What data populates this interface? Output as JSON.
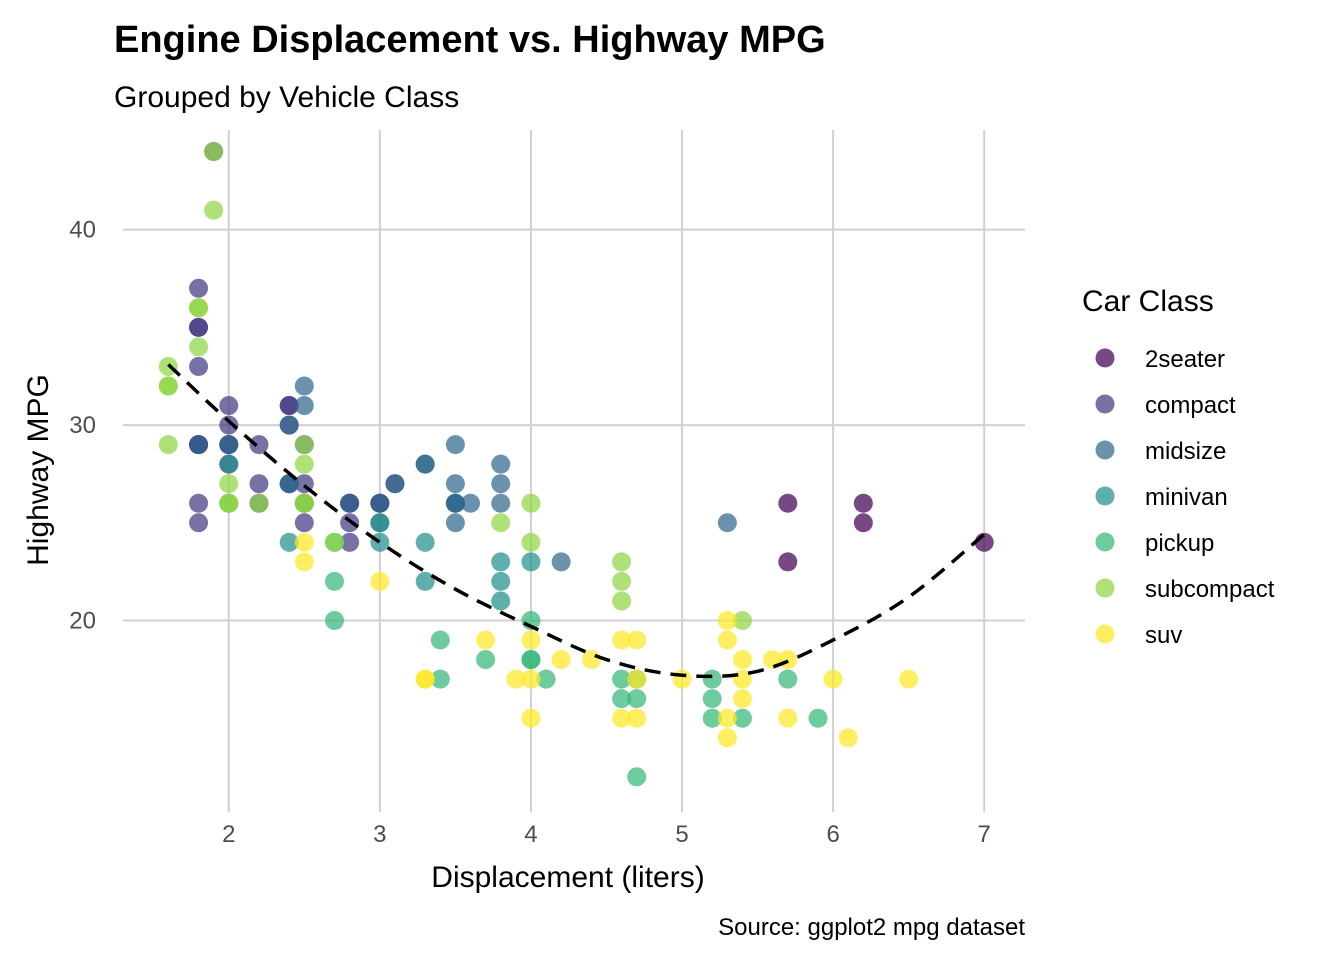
{
  "chart_data": {
    "type": "scatter",
    "title": "Engine Displacement vs. Highway MPG",
    "subtitle": "Grouped by Vehicle Class",
    "xlabel": "Displacement (liters)",
    "ylabel": "Highway MPG",
    "caption": "Source: ggplot2 mpg dataset",
    "xlim": [
      1.3,
      7.27
    ],
    "ylim": [
      10.2,
      45.1
    ],
    "x_ticks": [
      2,
      3,
      4,
      5,
      6,
      7
    ],
    "y_ticks": [
      20,
      30,
      40
    ],
    "grid": true,
    "legend": {
      "title": "Car Class",
      "position": "right"
    },
    "series": [
      {
        "name": "2seater",
        "color": "#440154",
        "points": [
          [
            5.7,
            26
          ],
          [
            5.7,
            23
          ],
          [
            6.2,
            26
          ],
          [
            6.2,
            25
          ],
          [
            7.0,
            24
          ]
        ]
      },
      {
        "name": "compact",
        "color": "#443A83",
        "points": [
          [
            1.8,
            29
          ],
          [
            1.8,
            29
          ],
          [
            2.0,
            31
          ],
          [
            2.0,
            30
          ],
          [
            2.8,
            26
          ],
          [
            2.8,
            26
          ],
          [
            3.1,
            27
          ],
          [
            1.8,
            26
          ],
          [
            1.8,
            25
          ],
          [
            2.0,
            28
          ],
          [
            2.0,
            29
          ],
          [
            2.8,
            25
          ],
          [
            3.0,
            26
          ],
          [
            1.9,
            44
          ],
          [
            2.0,
            29
          ],
          [
            2.5,
            29
          ],
          [
            2.5,
            26
          ],
          [
            2.2,
            29
          ],
          [
            2.2,
            27
          ],
          [
            2.4,
            31
          ],
          [
            2.4,
            31
          ],
          [
            3.0,
            26
          ],
          [
            1.8,
            33
          ],
          [
            1.8,
            35
          ],
          [
            1.8,
            37
          ],
          [
            1.8,
            35
          ],
          [
            1.8,
            29
          ],
          [
            2.5,
            27
          ],
          [
            2.5,
            25
          ],
          [
            2.8,
            24
          ],
          [
            2.4,
            27
          ],
          [
            2.4,
            30
          ],
          [
            2.2,
            26
          ]
        ]
      },
      {
        "name": "midsize",
        "color": "#31688E",
        "points": [
          [
            2.4,
            27
          ],
          [
            3.0,
            26
          ],
          [
            3.3,
            28
          ],
          [
            3.5,
            29
          ],
          [
            3.5,
            26
          ],
          [
            2.4,
            30
          ],
          [
            2.5,
            32
          ],
          [
            2.5,
            31
          ],
          [
            3.5,
            25
          ],
          [
            3.5,
            26
          ],
          [
            3.6,
            26
          ],
          [
            3.8,
            27
          ],
          [
            3.8,
            28
          ],
          [
            4.2,
            23
          ],
          [
            5.3,
            25
          ],
          [
            1.8,
            29
          ],
          [
            2.0,
            29
          ],
          [
            2.8,
            26
          ],
          [
            3.1,
            27
          ],
          [
            2.4,
            27
          ],
          [
            3.3,
            28
          ],
          [
            3.5,
            27
          ],
          [
            3.8,
            26
          ],
          [
            3.0,
            25
          ],
          [
            3.5,
            26
          ],
          [
            2.5,
            26
          ]
        ]
      },
      {
        "name": "minivan",
        "color": "#21908C",
        "points": [
          [
            2.4,
            24
          ],
          [
            3.0,
            24
          ],
          [
            3.3,
            22
          ],
          [
            3.3,
            24
          ],
          [
            3.8,
            23
          ],
          [
            3.8,
            22
          ],
          [
            4.0,
            23
          ],
          [
            3.8,
            21
          ],
          [
            3.0,
            25
          ],
          [
            2.0,
            26
          ],
          [
            2.0,
            28
          ]
        ]
      },
      {
        "name": "pickup",
        "color": "#35B779",
        "points": [
          [
            2.7,
            20
          ],
          [
            2.7,
            22
          ],
          [
            3.4,
            17
          ],
          [
            3.7,
            18
          ],
          [
            4.0,
            20
          ],
          [
            4.0,
            18
          ],
          [
            4.1,
            17
          ],
          [
            4.6,
            17
          ],
          [
            4.6,
            16
          ],
          [
            4.7,
            17
          ],
          [
            4.7,
            16
          ],
          [
            5.2,
            17
          ],
          [
            5.2,
            15
          ],
          [
            5.2,
            16
          ],
          [
            5.4,
            15
          ],
          [
            5.7,
            17
          ],
          [
            5.9,
            15
          ],
          [
            3.4,
            19
          ],
          [
            4.7,
            12
          ],
          [
            2.7,
            24
          ],
          [
            4.0,
            18
          ]
        ]
      },
      {
        "name": "subcompact",
        "color": "#8FD744",
        "points": [
          [
            1.6,
            33
          ],
          [
            1.6,
            32
          ],
          [
            1.6,
            32
          ],
          [
            1.6,
            29
          ],
          [
            1.8,
            34
          ],
          [
            1.8,
            36
          ],
          [
            1.8,
            36
          ],
          [
            2.0,
            27
          ],
          [
            2.0,
            26
          ],
          [
            2.5,
            29
          ],
          [
            2.5,
            28
          ],
          [
            2.5,
            26
          ],
          [
            2.7,
            24
          ],
          [
            3.8,
            25
          ],
          [
            4.0,
            26
          ],
          [
            4.0,
            24
          ],
          [
            4.6,
            23
          ],
          [
            4.6,
            22
          ],
          [
            4.6,
            21
          ],
          [
            5.4,
            20
          ],
          [
            1.9,
            41
          ],
          [
            1.9,
            44
          ],
          [
            2.2,
            26
          ],
          [
            2.0,
            26
          ],
          [
            2.5,
            26
          ]
        ]
      },
      {
        "name": "suv",
        "color": "#FDE725",
        "points": [
          [
            2.5,
            24
          ],
          [
            2.5,
            23
          ],
          [
            3.0,
            22
          ],
          [
            3.3,
            17
          ],
          [
            3.7,
            19
          ],
          [
            4.0,
            19
          ],
          [
            4.0,
            17
          ],
          [
            4.0,
            15
          ],
          [
            4.2,
            18
          ],
          [
            4.4,
            18
          ],
          [
            4.6,
            19
          ],
          [
            4.6,
            15
          ],
          [
            4.7,
            17
          ],
          [
            4.7,
            19
          ],
          [
            4.7,
            15
          ],
          [
            5.0,
            17
          ],
          [
            5.3,
            20
          ],
          [
            5.3,
            19
          ],
          [
            5.3,
            15
          ],
          [
            5.3,
            14
          ],
          [
            5.4,
            18
          ],
          [
            5.4,
            16
          ],
          [
            5.4,
            17
          ],
          [
            5.6,
            18
          ],
          [
            5.7,
            18
          ],
          [
            5.7,
            15
          ],
          [
            6.0,
            17
          ],
          [
            6.1,
            14
          ],
          [
            6.5,
            17
          ],
          [
            3.9,
            17
          ],
          [
            3.3,
            17
          ]
        ]
      }
    ],
    "trend": {
      "style": "dashed",
      "color": "#000000",
      "points": [
        [
          1.6,
          33.1
        ],
        [
          2.0,
          30.2
        ],
        [
          2.5,
          26.9
        ],
        [
          3.0,
          24.0
        ],
        [
          3.5,
          21.6
        ],
        [
          4.0,
          19.7
        ],
        [
          4.5,
          18.0
        ],
        [
          5.0,
          17.2
        ],
        [
          5.5,
          17.4
        ],
        [
          6.0,
          19.0
        ],
        [
          6.5,
          21.2
        ],
        [
          7.0,
          24.4
        ]
      ]
    }
  }
}
